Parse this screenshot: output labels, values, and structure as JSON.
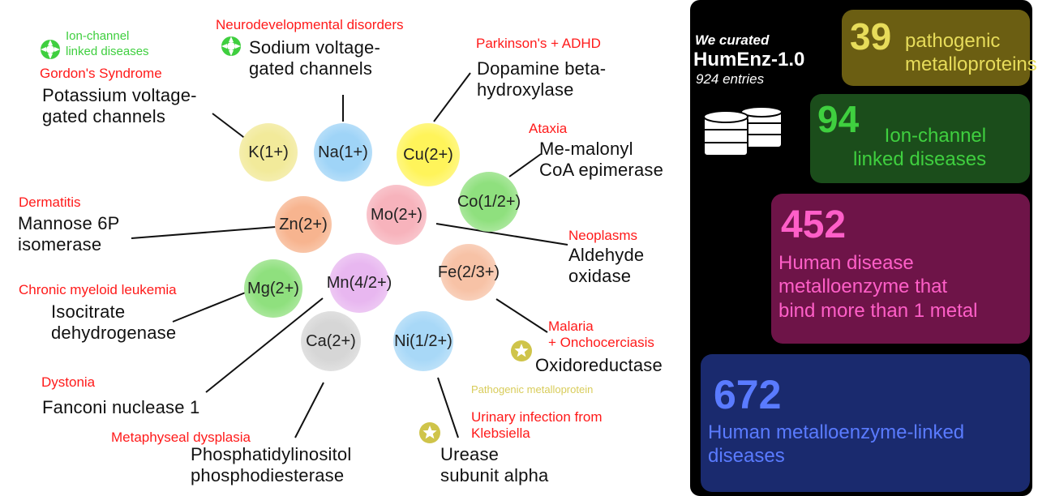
{
  "colors": {
    "disease_red": "#ff1a1a",
    "ion_channel_green": "#3fcf3f",
    "pathogenic_yellow": "#d8cc5a",
    "panel_bg": "#000000",
    "box_yellow": "#6b5e12",
    "box_green": "#1b4d1b",
    "box_magenta": "#6e1448",
    "box_blue": "#1a2a6e"
  },
  "ions": [
    {
      "label": "K(1+)",
      "color": "#f2ea9a"
    },
    {
      "label": "Na(1+)",
      "color": "#9fd4f7"
    },
    {
      "label": "Cu(2+)",
      "color": "#fff45a"
    },
    {
      "label": "Co(1/2+)",
      "color": "#8fe07e"
    },
    {
      "label": "Zn(2+)",
      "color": "#f7b48f"
    },
    {
      "label": "Mo(2+)",
      "color": "#f7b3bc"
    },
    {
      "label": "Mg(2+)",
      "color": "#8fe07e"
    },
    {
      "label": "Mn(4/2+)",
      "color": "#e8b7f0"
    },
    {
      "label": "Fe(2/3+)",
      "color": "#f7c2a6"
    },
    {
      "label": "Ca(2+)",
      "color": "#d6d6d6"
    },
    {
      "label": "Ni(1/2+)",
      "color": "#a8d8f7"
    }
  ],
  "labels": {
    "ion_channel_k": "Ion-channel\nlinked diseases",
    "gordon": "Gordon's Syndrome",
    "potassium": "Potassium voltage-\ngated channels",
    "neurodev": "Neurodevelopmental disorders",
    "sodium": "Sodium voltage-\ngated channels",
    "parkinsons": "Parkinson's + ADHD",
    "dopamine": "Dopamine beta-\nhydroxylase",
    "ataxia": "Ataxia",
    "memalonyl": "Me-malonyl\nCoA epimerase",
    "dermatitis": "Dermatitis",
    "mannose": "Mannose 6P\nisomerase",
    "neoplasms": "Neoplasms",
    "aldehyde": "Aldehyde\noxidase",
    "cml": "Chronic myeloid leukemia",
    "isocitrate": "Isocitrate\ndehydrogenase",
    "malaria": "Malaria\n+ Onchocerciasis",
    "oxidoreductase": "Oxidoreductase",
    "dystonia": "Dystonia",
    "fanconi": "Fanconi nuclease 1",
    "pathogenic_legend": "Pathogenic metalloprotein",
    "urinary": "Urinary infection from\nKlebsiella",
    "metaphyseal": "Metaphyseal dysplasia",
    "phosphatidyl": "Phosphatidylinositol\nphosphodiesterase",
    "urease": "Urease\nsubunit alpha"
  },
  "panel": {
    "we_curated": "We curated",
    "dataset": "HumEnz-1.0",
    "entries": "924 entries",
    "stats": [
      {
        "number": "39",
        "text": "pathogenic\nmetalloproteins"
      },
      {
        "number": "94",
        "text": "Ion-channel\nlinked diseases"
      },
      {
        "number": "452",
        "text": "Human disease\nmetalloenzyme that\nbind more than 1 metal"
      },
      {
        "number": "672",
        "text": "Human metalloenzyme-linked\ndiseases"
      }
    ]
  }
}
